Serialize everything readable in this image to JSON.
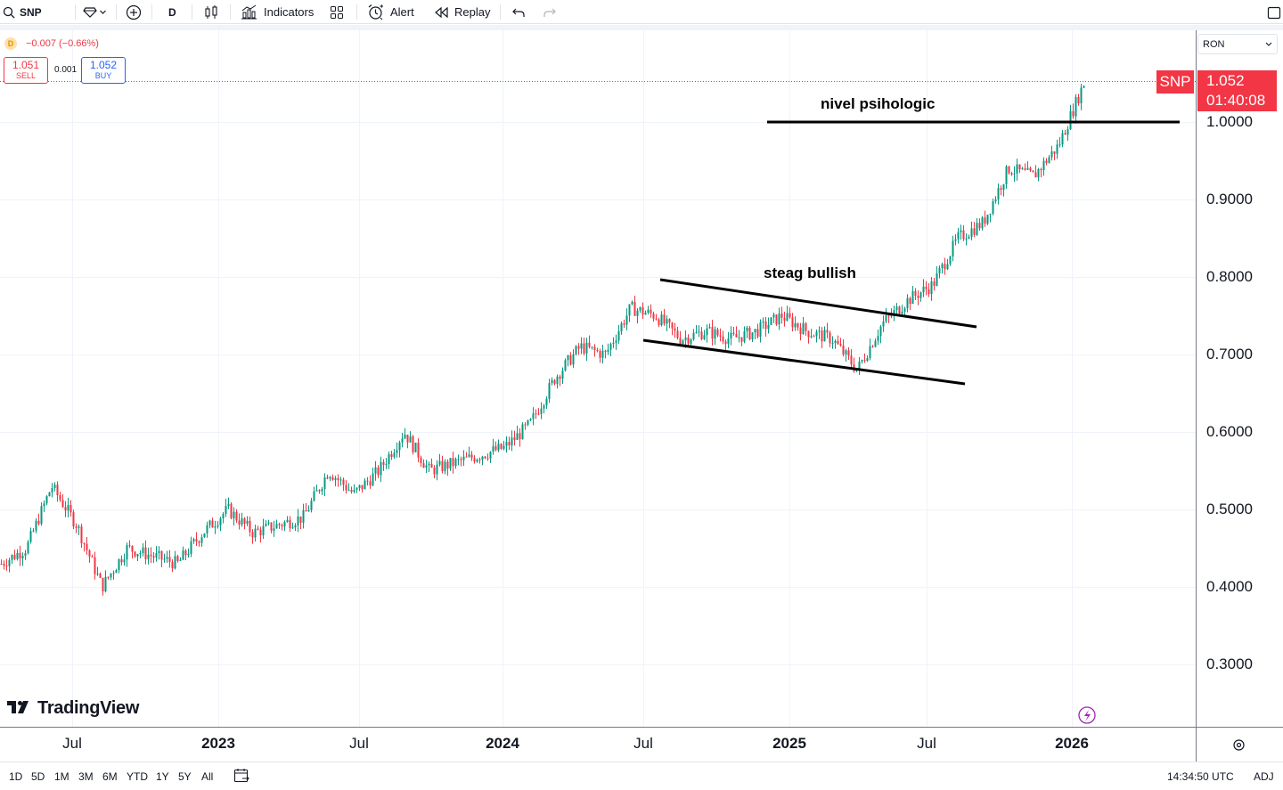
{
  "toolbar": {
    "symbol": "SNP",
    "interval": "D",
    "indicators_label": "Indicators",
    "alert_label": "Alert",
    "replay_label": "Replay"
  },
  "legend": {
    "badge": "D",
    "change": "−0.007 (−0.66%)",
    "sell_price": "1.051",
    "sell_label": "SELL",
    "spread": "0.001",
    "buy_price": "1.052",
    "buy_label": "BUY"
  },
  "price_scale": {
    "currency": "RON",
    "symbol_tag": "SNP",
    "last_price": "1.052",
    "countdown": "01:40:08"
  },
  "annotations": {
    "resistance_label": "nivel psihologic",
    "channel_label": "steag bullish"
  },
  "branding": {
    "logo_text": "TradingView"
  },
  "bottombar": {
    "ranges": [
      "1D",
      "5D",
      "1M",
      "3M",
      "6M",
      "YTD",
      "1Y",
      "5Y",
      "All"
    ],
    "time": "14:34:50 UTC",
    "adj": "ADJ"
  },
  "colors": {
    "up": "#089981",
    "down": "#f23645",
    "price_line": "#f23645",
    "grid": "#f0f3fa"
  },
  "chart_data": {
    "type": "candlestick",
    "symbol": "SNP",
    "currency": "RON",
    "interval": "D",
    "y_ticks": [
      "1.0000",
      "0.9000",
      "0.8000",
      "0.7000",
      "0.6000",
      "0.5000",
      "0.4000",
      "0.3000"
    ],
    "x_ticks": [
      "Jul",
      "2023",
      "Jul",
      "2024",
      "Jul",
      "2025",
      "Jul",
      "2026"
    ],
    "ylim": [
      0.26,
      1.14
    ],
    "last_price": 1.052,
    "approx_close_path": [
      [
        "2022-05",
        0.43
      ],
      [
        "2022-07",
        0.45
      ],
      [
        "2022-08",
        0.53
      ],
      [
        "2022-09",
        0.48
      ],
      [
        "2022-10",
        0.4
      ],
      [
        "2022-11",
        0.45
      ],
      [
        "2022-12",
        0.44
      ],
      [
        "2023-01",
        0.43
      ],
      [
        "2023-02",
        0.47
      ],
      [
        "2023-03",
        0.5
      ],
      [
        "2023-04",
        0.47
      ],
      [
        "2023-05",
        0.48
      ],
      [
        "2023-06",
        0.49
      ],
      [
        "2023-07",
        0.55
      ],
      [
        "2023-08",
        0.52
      ],
      [
        "2023-09",
        0.55
      ],
      [
        "2023-10",
        0.6
      ],
      [
        "2023-11",
        0.55
      ],
      [
        "2023-12",
        0.56
      ],
      [
        "2024-01",
        0.57
      ],
      [
        "2024-02",
        0.58
      ],
      [
        "2024-03",
        0.61
      ],
      [
        "2024-04",
        0.67
      ],
      [
        "2024-05",
        0.71
      ],
      [
        "2024-06",
        0.7
      ],
      [
        "2024-07",
        0.76
      ],
      [
        "2024-08",
        0.75
      ],
      [
        "2024-09",
        0.72
      ],
      [
        "2024-10",
        0.73
      ],
      [
        "2024-11",
        0.72
      ],
      [
        "2024-12",
        0.73
      ],
      [
        "2025-01",
        0.75
      ],
      [
        "2025-02",
        0.73
      ],
      [
        "2025-03",
        0.72
      ],
      [
        "2025-04",
        0.68
      ],
      [
        "2025-05",
        0.74
      ],
      [
        "2025-06",
        0.77
      ],
      [
        "2025-07",
        0.79
      ],
      [
        "2025-08",
        0.85
      ],
      [
        "2025-09",
        0.87
      ],
      [
        "2025-10",
        0.94
      ],
      [
        "2025-11",
        0.93
      ],
      [
        "2025-12",
        0.97
      ],
      [
        "2026-01",
        1.05
      ]
    ],
    "drawings": [
      {
        "kind": "horizontal-line",
        "label": "nivel psihologic",
        "y": 1.0
      },
      {
        "kind": "channel-line",
        "label": "steag bullish"
      },
      {
        "kind": "channel-line"
      }
    ]
  }
}
